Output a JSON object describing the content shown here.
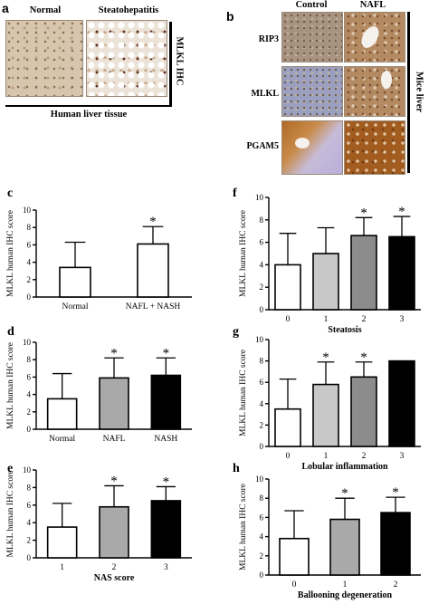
{
  "panels": {
    "a": {
      "letter": "a",
      "headers": [
        "Normal",
        "Steatohepatitis"
      ],
      "side_label": "MLKL IHC",
      "caption": "Human liver tissue"
    },
    "b": {
      "letter": "b",
      "headers": [
        "Control",
        "NAFL"
      ],
      "rows": [
        "RIP3",
        "MLKL",
        "PGAM5"
      ],
      "side_label": "Mice liver"
    }
  },
  "chart_data": [
    {
      "id": "c",
      "type": "bar",
      "categories": [
        "Normal",
        "NAFL + NASH"
      ],
      "values": [
        3.4,
        6.1
      ],
      "errors": [
        2.9,
        2.0
      ],
      "significant": [
        false,
        true
      ],
      "fills": [
        "#ffffff",
        "#ffffff"
      ],
      "xlabel": "",
      "ylabel": "MLKL human IHC score",
      "ylim": [
        0,
        10
      ],
      "yticks": [
        0,
        2,
        4,
        6,
        8,
        10
      ],
      "grid": false
    },
    {
      "id": "d",
      "type": "bar",
      "categories": [
        "Normal",
        "NAFL",
        "NASH"
      ],
      "values": [
        3.5,
        5.9,
        6.2
      ],
      "errors": [
        2.9,
        2.3,
        2.0
      ],
      "significant": [
        false,
        true,
        true
      ],
      "fills": [
        "#ffffff",
        "#a9a9a9",
        "#000000"
      ],
      "xlabel": "",
      "ylabel": "MLKL human IHC score",
      "ylim": [
        0,
        10
      ],
      "yticks": [
        0,
        2,
        4,
        6,
        8,
        10
      ],
      "grid": false
    },
    {
      "id": "e",
      "type": "bar",
      "categories": [
        "1",
        "2",
        "3"
      ],
      "values": [
        3.5,
        5.8,
        6.5
      ],
      "errors": [
        2.7,
        2.4,
        1.6
      ],
      "significant": [
        false,
        true,
        true
      ],
      "fills": [
        "#ffffff",
        "#a9a9a9",
        "#000000"
      ],
      "xlabel": "NAS score",
      "ylabel": "MLKL human IHC score",
      "ylim": [
        0,
        10
      ],
      "yticks": [
        0,
        2,
        4,
        6,
        8,
        10
      ],
      "grid": false
    },
    {
      "id": "f",
      "type": "bar",
      "categories": [
        "0",
        "1",
        "2",
        "3"
      ],
      "values": [
        4.0,
        5.0,
        6.6,
        6.5
      ],
      "errors": [
        2.8,
        2.3,
        1.6,
        1.8
      ],
      "significant": [
        false,
        false,
        true,
        true
      ],
      "fills": [
        "#ffffff",
        "#c8c8c8",
        "#8c8c8c",
        "#000000"
      ],
      "xlabel": "Steatosis",
      "ylabel": "MLKL human IHC score",
      "ylim": [
        0,
        10
      ],
      "yticks": [
        0,
        2,
        4,
        6,
        8,
        10
      ],
      "grid": false
    },
    {
      "id": "g",
      "type": "bar",
      "categories": [
        "0",
        "1",
        "2",
        "3"
      ],
      "values": [
        3.5,
        5.8,
        6.5,
        8.0
      ],
      "errors": [
        2.8,
        2.1,
        1.4,
        0
      ],
      "significant": [
        false,
        true,
        true,
        false
      ],
      "fills": [
        "#ffffff",
        "#c8c8c8",
        "#8c8c8c",
        "#000000"
      ],
      "xlabel": "Lobular inflammation",
      "ylabel": "MLKL human IHC score",
      "ylim": [
        0,
        10
      ],
      "yticks": [
        0,
        2,
        4,
        6,
        8,
        10
      ],
      "grid": false
    },
    {
      "id": "h",
      "type": "bar",
      "categories": [
        "0",
        "1",
        "2"
      ],
      "values": [
        3.8,
        5.8,
        6.5
      ],
      "errors": [
        2.9,
        2.2,
        1.6
      ],
      "significant": [
        false,
        true,
        true
      ],
      "fills": [
        "#ffffff",
        "#a9a9a9",
        "#000000"
      ],
      "xlabel": "Ballooning degeneration",
      "ylabel": "MLKL human IHC score",
      "ylim": [
        0,
        10
      ],
      "yticks": [
        0,
        2,
        4,
        6,
        8,
        10
      ],
      "grid": false
    }
  ],
  "significance_marker": "*"
}
